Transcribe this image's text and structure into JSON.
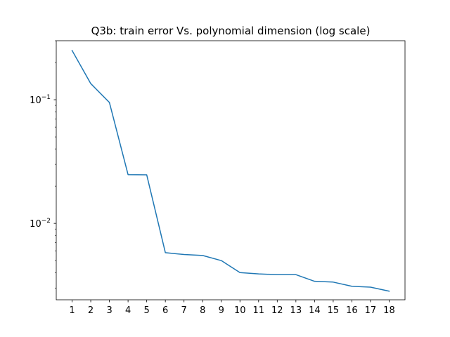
{
  "chart_data": {
    "type": "line",
    "title": "Q3b: train error Vs. polynomial dimension (log scale)",
    "xlabel": "",
    "ylabel": "",
    "y_scale": "log",
    "x": [
      1,
      2,
      3,
      4,
      5,
      6,
      7,
      8,
      9,
      10,
      11,
      12,
      13,
      14,
      15,
      16,
      17,
      18
    ],
    "series": [
      {
        "values": [
          0.25,
          0.135,
          0.095,
          0.0248,
          0.0247,
          0.0058,
          0.0056,
          0.0055,
          0.005,
          0.004,
          0.0039,
          0.00385,
          0.00385,
          0.0034,
          0.00335,
          0.0031,
          0.00305,
          0.00283
        ],
        "color": "#1f77b4"
      }
    ],
    "xlim": [
      0.15,
      18.85
    ],
    "ylim": [
      0.00241,
      0.3
    ],
    "x_ticks": [
      "1",
      "2",
      "3",
      "4",
      "5",
      "6",
      "7",
      "8",
      "9",
      "10",
      "11",
      "12",
      "13",
      "14",
      "15",
      "16",
      "17",
      "18"
    ],
    "y_ticks": [
      {
        "value": 0.1,
        "base": "10",
        "exp": "−1"
      },
      {
        "value": 0.01,
        "base": "10",
        "exp": "−2"
      }
    ],
    "y_minor_ticks": [
      0.003,
      0.004,
      0.005,
      0.006,
      0.007,
      0.008,
      0.009,
      0.02,
      0.03,
      0.04,
      0.05,
      0.06,
      0.07,
      0.08,
      0.09,
      0.2,
      0.3
    ],
    "grid": false,
    "legend": "none"
  }
}
